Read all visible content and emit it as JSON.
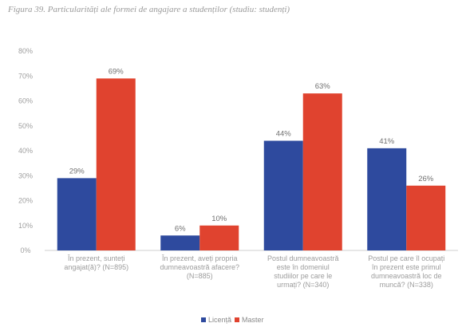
{
  "figure": {
    "title": "Figura 39. Particularități ale formei de angajare a studenților (studiu: studenți)"
  },
  "colors": {
    "licenta": "#2e4a9e",
    "master": "#e0432f",
    "grid": "#e6e6e6",
    "axis": "#cfcfcf"
  },
  "chart_data": {
    "type": "bar",
    "title": "Figura 39. Particularități ale formei de angajare a studenților (studiu: studenți)",
    "xlabel": "",
    "ylabel": "",
    "ylim": [
      0,
      80
    ],
    "grid": false,
    "legend_position": "bottom",
    "yticks": [
      "0%",
      "10%",
      "20%",
      "30%",
      "40%",
      "50%",
      "60%",
      "70%",
      "80%"
    ],
    "categories": [
      [
        "În prezent, sunteți",
        "angajat(ă)? (N=895)"
      ],
      [
        "În prezent, aveți propria",
        "dumneavoastră afacere?",
        "(N=885)"
      ],
      [
        "Postul dumneavoastră",
        "este în domeniul",
        "studiilor pe care le",
        "urmați? (N=340)"
      ],
      [
        "Postul pe care îl ocupați",
        "în prezent este primul",
        "dumneavoastră loc de",
        "muncă? (N=338)"
      ]
    ],
    "series": [
      {
        "name": "Licență",
        "values": [
          29,
          6,
          44,
          41
        ],
        "labels": [
          "29%",
          "6%",
          "44%",
          "41%"
        ]
      },
      {
        "name": "Master",
        "values": [
          69,
          10,
          63,
          26
        ],
        "labels": [
          "69%",
          "10%",
          "63%",
          "26%"
        ]
      }
    ]
  }
}
